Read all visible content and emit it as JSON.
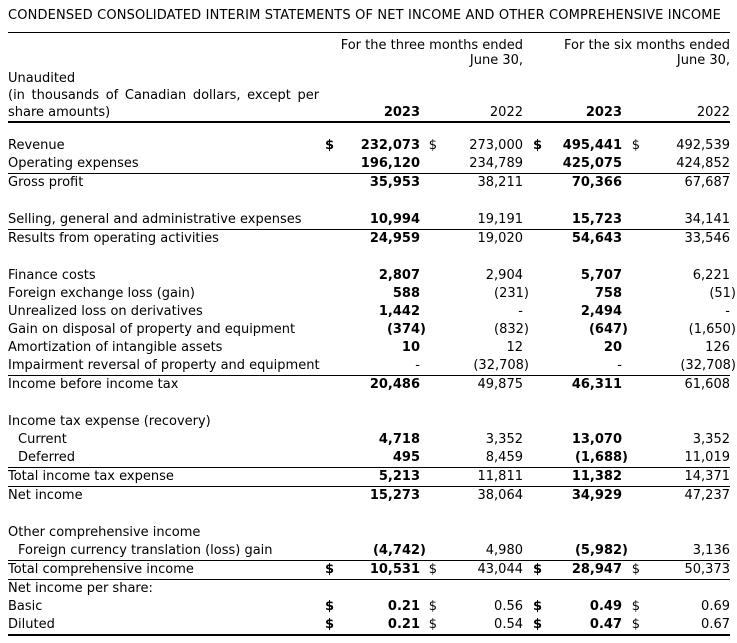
{
  "title": "CONDENSED CONSOLIDATED INTERIM STATEMENTS OF NET INCOME AND OTHER COMPREHENSIVE INCOME",
  "header": {
    "period_groups": [
      {
        "line1": "For the three months ended",
        "line2": "June 30,"
      },
      {
        "line1": "For the six months ended",
        "line2": "June 30,"
      }
    ],
    "unaudited_lines": [
      "Unaudited",
      "(in thousands of Canadian dollars, except per",
      "share amounts)"
    ],
    "year_columns": [
      "2023",
      "2022",
      "2023",
      "2022"
    ]
  },
  "rows": [
    {
      "label": "Revenue",
      "dollar": true,
      "values": [
        "232,073",
        "273,000",
        "495,441",
        "492,539"
      ]
    },
    {
      "label": "Operating expenses",
      "values": [
        "196,120",
        "234,789",
        "425,075",
        "424,852"
      ],
      "rule": true
    },
    {
      "label": "Gross profit",
      "values": [
        "35,953",
        "38,211",
        "70,366",
        "67,687"
      ]
    },
    {
      "spacer": true
    },
    {
      "label": "Selling, general and administrative expenses",
      "values": [
        "10,994",
        "19,191",
        "15,723",
        "34,141"
      ],
      "rule": true
    },
    {
      "label": "Results from operating activities",
      "values": [
        "24,959",
        "19,020",
        "54,643",
        "33,546"
      ]
    },
    {
      "spacer": true
    },
    {
      "label": "Finance costs",
      "values": [
        "2,807",
        "2,904",
        "5,707",
        "6,221"
      ]
    },
    {
      "label": "Foreign exchange loss (gain)",
      "values": [
        "588",
        "(231)",
        "758",
        "(51)"
      ]
    },
    {
      "label": "Unrealized loss on derivatives",
      "values": [
        "1,442",
        "-",
        "2,494",
        "-"
      ]
    },
    {
      "label": "Gain on disposal of property and equipment",
      "values": [
        "(374)",
        "(832)",
        "(647)",
        "(1,650)"
      ]
    },
    {
      "label": "Amortization of intangible assets",
      "values": [
        "10",
        "12",
        "20",
        "126"
      ]
    },
    {
      "label": "Impairment reversal of property and equipment",
      "values": [
        "-",
        "(32,708)",
        "-",
        "(32,708)"
      ],
      "rule": true
    },
    {
      "label": "Income before income tax",
      "values": [
        "20,486",
        "49,875",
        "46,311",
        "61,608"
      ]
    },
    {
      "spacer": true
    },
    {
      "label": "Income tax expense (recovery)",
      "section": true
    },
    {
      "label": "Current",
      "indent": true,
      "values": [
        "4,718",
        "3,352",
        "13,070",
        "3,352"
      ]
    },
    {
      "label": "Deferred",
      "indent": true,
      "values": [
        "495",
        "8,459",
        "(1,688)",
        "11,019"
      ],
      "rule": true
    },
    {
      "label": "Total income tax expense",
      "values": [
        "5,213",
        "11,811",
        "11,382",
        "14,371"
      ],
      "rule": true
    },
    {
      "label": "Net income",
      "values": [
        "15,273",
        "38,064",
        "34,929",
        "47,237"
      ]
    },
    {
      "spacer": true
    },
    {
      "label": "Other comprehensive income",
      "section": true
    },
    {
      "label": "Foreign currency translation (loss) gain",
      "indent": true,
      "values": [
        "(4,742)",
        "4,980",
        "(5,982)",
        "3,136"
      ],
      "rule": true
    },
    {
      "label": "Total comprehensive income",
      "dollar": true,
      "values": [
        "10,531",
        "43,044",
        "28,947",
        "50,373"
      ],
      "rule": true
    },
    {
      "label": "Net income per share:",
      "section": true
    },
    {
      "label": "Basic",
      "dollar": true,
      "values": [
        "0.21",
        "0.56",
        "0.49",
        "0.69"
      ]
    },
    {
      "label": "Diluted",
      "dollar": true,
      "values": [
        "0.21",
        "0.54",
        "0.47",
        "0.67"
      ],
      "rule": true,
      "final": true
    }
  ]
}
